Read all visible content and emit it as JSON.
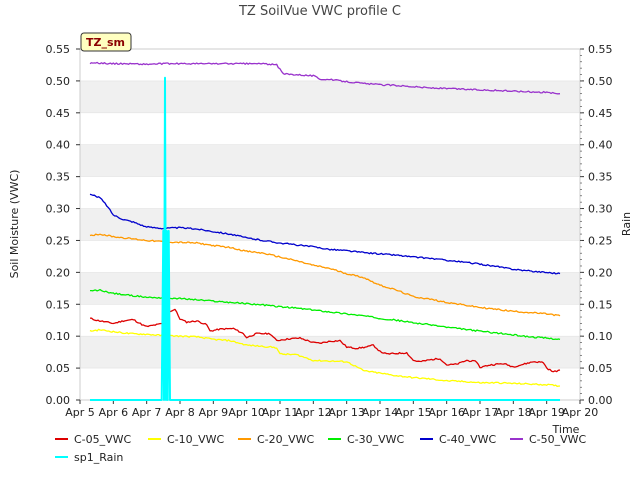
{
  "chart_data": {
    "type": "line",
    "title": "TZ SoilVue VWC profile C",
    "xlabel": "Time",
    "ylabel": "Soil Moisture (VWC)",
    "y2label": "Rain",
    "badge": "TZ_sm",
    "xlim": [
      5,
      20
    ],
    "ylim": [
      0,
      0.55
    ],
    "y2lim": [
      0,
      0.55
    ],
    "grid": "horizontal bands",
    "legend": "bottom",
    "x_ticks": [
      "Apr 5",
      "Apr 6",
      "Apr 7",
      "Apr 8",
      "Apr 9",
      "Apr 10",
      "Apr 11",
      "Apr 12",
      "Apr 13",
      "Apr 14",
      "Apr 15",
      "Apr 16",
      "Apr 17",
      "Apr 18",
      "Apr 19",
      "Apr 20"
    ],
    "y_ticks": [
      "0.00",
      "0.05",
      "0.10",
      "0.15",
      "0.20",
      "0.25",
      "0.30",
      "0.35",
      "0.40",
      "0.45",
      "0.50",
      "0.55"
    ],
    "series": [
      {
        "name": "C-05_VWC",
        "color": "#dd0000",
        "x": [
          5.3,
          5.5,
          5.8,
          6.0,
          6.3,
          6.6,
          6.9,
          7.0,
          7.3,
          7.5,
          7.6,
          7.75,
          7.85,
          8.0,
          8.2,
          8.5,
          8.8,
          8.9,
          9.2,
          9.6,
          9.9,
          10.0,
          10.3,
          10.7,
          10.9,
          11.0,
          11.3,
          11.6,
          12.0,
          12.2,
          12.5,
          12.8,
          13.0,
          13.3,
          13.6,
          13.8,
          14.0,
          14.2,
          14.5,
          14.8,
          15.0,
          15.2,
          15.5,
          15.8,
          16.0,
          16.3,
          16.6,
          16.9,
          17.0,
          17.3,
          17.7,
          18.0,
          18.3,
          18.6,
          18.9,
          19.0,
          19.2,
          19.4
        ],
        "y": [
          0.128,
          0.125,
          0.122,
          0.12,
          0.124,
          0.126,
          0.117,
          0.115,
          0.118,
          0.12,
          0.135,
          0.14,
          0.142,
          0.127,
          0.122,
          0.124,
          0.118,
          0.108,
          0.111,
          0.112,
          0.104,
          0.098,
          0.104,
          0.104,
          0.093,
          0.094,
          0.096,
          0.097,
          0.09,
          0.089,
          0.092,
          0.093,
          0.083,
          0.081,
          0.083,
          0.086,
          0.076,
          0.072,
          0.073,
          0.074,
          0.062,
          0.06,
          0.063,
          0.065,
          0.055,
          0.056,
          0.062,
          0.06,
          0.051,
          0.055,
          0.057,
          0.052,
          0.056,
          0.06,
          0.059,
          0.05,
          0.044,
          0.047
        ]
      },
      {
        "name": "C-10_VWC",
        "color": "#ffff00",
        "x": [
          5.3,
          5.6,
          6.0,
          6.5,
          7.0,
          7.5,
          8.0,
          8.5,
          9.0,
          9.5,
          10.0,
          10.5,
          10.9,
          11.0,
          11.5,
          12.0,
          12.5,
          13.0,
          13.3,
          13.5,
          14.0,
          14.5,
          15.0,
          15.5,
          16.0,
          16.5,
          17.0,
          17.5,
          18.0,
          18.5,
          19.0,
          19.4
        ],
        "y": [
          0.108,
          0.11,
          0.107,
          0.104,
          0.103,
          0.101,
          0.1,
          0.099,
          0.095,
          0.093,
          0.086,
          0.084,
          0.082,
          0.072,
          0.071,
          0.062,
          0.061,
          0.06,
          0.052,
          0.046,
          0.042,
          0.038,
          0.035,
          0.033,
          0.03,
          0.029,
          0.027,
          0.027,
          0.026,
          0.025,
          0.024,
          0.022
        ]
      },
      {
        "name": "C-20_VWC",
        "color": "#ff9900",
        "x": [
          5.3,
          5.6,
          6.0,
          6.5,
          7.0,
          7.5,
          8.0,
          8.5,
          9.0,
          9.5,
          10.0,
          10.5,
          11.0,
          11.5,
          12.0,
          12.5,
          13.0,
          13.5,
          14.0,
          14.5,
          15.0,
          15.5,
          16.0,
          16.5,
          17.0,
          17.5,
          18.0,
          18.5,
          19.0,
          19.4
        ],
        "y": [
          0.258,
          0.26,
          0.256,
          0.253,
          0.25,
          0.248,
          0.247,
          0.246,
          0.242,
          0.239,
          0.233,
          0.23,
          0.224,
          0.218,
          0.211,
          0.206,
          0.198,
          0.192,
          0.18,
          0.172,
          0.162,
          0.158,
          0.153,
          0.149,
          0.145,
          0.142,
          0.139,
          0.137,
          0.135,
          0.132
        ]
      },
      {
        "name": "C-30_VWC",
        "color": "#00ee00",
        "x": [
          5.3,
          5.6,
          6.0,
          6.5,
          7.0,
          7.5,
          8.0,
          8.5,
          9.0,
          9.5,
          10.0,
          10.5,
          11.0,
          11.5,
          12.0,
          12.5,
          13.0,
          13.5,
          14.0,
          14.5,
          15.0,
          15.5,
          16.0,
          16.5,
          17.0,
          17.5,
          18.0,
          18.5,
          19.0,
          19.4
        ],
        "y": [
          0.171,
          0.172,
          0.167,
          0.164,
          0.161,
          0.16,
          0.159,
          0.157,
          0.155,
          0.153,
          0.151,
          0.149,
          0.146,
          0.144,
          0.141,
          0.138,
          0.135,
          0.132,
          0.128,
          0.125,
          0.121,
          0.118,
          0.114,
          0.111,
          0.108,
          0.105,
          0.102,
          0.099,
          0.097,
          0.095
        ]
      },
      {
        "name": "C-40_VWC",
        "color": "#0000cc",
        "x": [
          5.3,
          5.6,
          5.8,
          6.0,
          6.3,
          6.6,
          7.0,
          7.5,
          8.0,
          8.5,
          9.0,
          9.5,
          10.0,
          10.5,
          11.0,
          11.5,
          12.0,
          12.5,
          13.0,
          13.5,
          14.0,
          14.5,
          15.0,
          15.5,
          16.0,
          16.5,
          17.0,
          17.5,
          18.0,
          18.5,
          19.0,
          19.4
        ],
        "y": [
          0.322,
          0.317,
          0.305,
          0.29,
          0.283,
          0.279,
          0.271,
          0.269,
          0.27,
          0.268,
          0.264,
          0.26,
          0.254,
          0.25,
          0.246,
          0.243,
          0.24,
          0.236,
          0.234,
          0.231,
          0.229,
          0.227,
          0.224,
          0.222,
          0.219,
          0.216,
          0.213,
          0.209,
          0.205,
          0.202,
          0.2,
          0.198
        ]
      },
      {
        "name": "C-50_VWC",
        "color": "#9933cc",
        "x": [
          5.3,
          5.6,
          6.0,
          6.5,
          7.0,
          7.5,
          8.0,
          8.5,
          9.0,
          9.5,
          10.0,
          10.5,
          10.9,
          11.1,
          11.5,
          12.0,
          12.2,
          12.5,
          13.0,
          13.5,
          14.0,
          14.5,
          15.0,
          15.5,
          16.0,
          16.5,
          17.0,
          17.5,
          18.0,
          18.5,
          19.0,
          19.4
        ],
        "y": [
          0.528,
          0.528,
          0.527,
          0.527,
          0.526,
          0.527,
          0.527,
          0.527,
          0.527,
          0.527,
          0.527,
          0.527,
          0.525,
          0.511,
          0.51,
          0.508,
          0.503,
          0.502,
          0.499,
          0.496,
          0.494,
          0.493,
          0.491,
          0.489,
          0.488,
          0.487,
          0.486,
          0.485,
          0.484,
          0.483,
          0.482,
          0.48
        ]
      },
      {
        "name": "sp1_Rain",
        "color": "#00ffff",
        "x": [
          5.3,
          7.45,
          7.5,
          7.52,
          7.55,
          7.58,
          7.6,
          7.63,
          7.66,
          7.7,
          19.4
        ],
        "y": [
          0,
          0,
          0.265,
          0,
          0.505,
          0,
          0.265,
          0,
          0.265,
          0,
          0
        ]
      }
    ]
  }
}
